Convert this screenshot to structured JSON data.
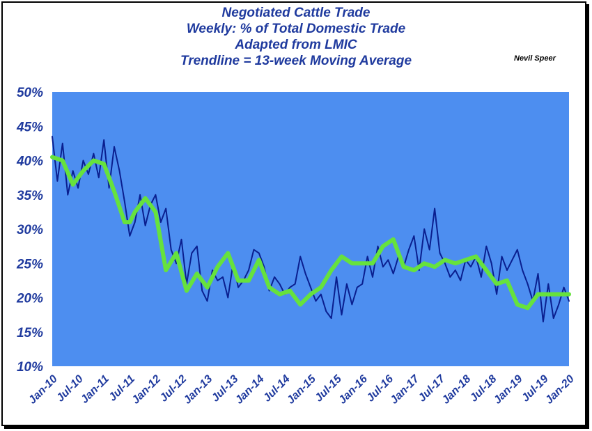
{
  "chart_data": {
    "type": "line",
    "title": [
      "Negotiated Cattle Trade",
      "Weekly:  % of Total Domestic Trade",
      "Adapted from LMIC",
      "Trendline = 13-week Moving Average"
    ],
    "author": "Nevil Speer",
    "xlabel": "",
    "ylabel": "",
    "ylim": [
      10,
      50
    ],
    "y_ticks": [
      "10%",
      "15%",
      "20%",
      "25%",
      "30%",
      "35%",
      "40%",
      "45%",
      "50%"
    ],
    "x_ticks": [
      "Jan-10",
      "Jul-10",
      "Jan-11",
      "Jul-11",
      "Jan-12",
      "Jul-12",
      "Jan-13",
      "Jul-13",
      "Jan-14",
      "Jul-14",
      "Jan-15",
      "Jul-15",
      "Jan-16",
      "Jul-16",
      "Jan-17",
      "Jul-17",
      "Jan-18",
      "Jul-18",
      "Jan-19",
      "Jul-19",
      "Jan-20"
    ],
    "x_range_years": [
      2010.0,
      2020.0
    ],
    "grid": false,
    "plot_background": "#4d8ef0",
    "series": [
      {
        "style": "weekly",
        "color": "#0a1f8f",
        "x": [
          2010.0,
          2010.1,
          2010.2,
          2010.3,
          2010.4,
          2010.5,
          2010.6,
          2010.7,
          2010.8,
          2010.9,
          2011.0,
          2011.1,
          2011.2,
          2011.3,
          2011.4,
          2011.5,
          2011.6,
          2011.7,
          2011.8,
          2011.9,
          2012.0,
          2012.1,
          2012.2,
          2012.3,
          2012.4,
          2012.5,
          2012.6,
          2012.7,
          2012.8,
          2012.9,
          2013.0,
          2013.1,
          2013.2,
          2013.3,
          2013.4,
          2013.5,
          2013.6,
          2013.7,
          2013.8,
          2013.9,
          2014.0,
          2014.1,
          2014.2,
          2014.3,
          2014.4,
          2014.5,
          2014.6,
          2014.7,
          2014.8,
          2014.9,
          2015.0,
          2015.1,
          2015.2,
          2015.3,
          2015.4,
          2015.5,
          2015.6,
          2015.7,
          2015.8,
          2015.9,
          2016.0,
          2016.1,
          2016.2,
          2016.3,
          2016.4,
          2016.5,
          2016.6,
          2016.7,
          2016.8,
          2016.9,
          2017.0,
          2017.1,
          2017.2,
          2017.3,
          2017.4,
          2017.5,
          2017.6,
          2017.7,
          2017.8,
          2017.9,
          2018.0,
          2018.1,
          2018.2,
          2018.3,
          2018.4,
          2018.5,
          2018.6,
          2018.7,
          2018.8,
          2018.9,
          2019.0,
          2019.1,
          2019.2,
          2019.3,
          2019.4,
          2019.5,
          2019.6,
          2019.7,
          2019.8,
          2019.9,
          2020.0
        ],
        "values": [
          43.5,
          37,
          42.5,
          35,
          38.5,
          36,
          40,
          38,
          41,
          37.5,
          43,
          36,
          42,
          38.5,
          34,
          29,
          31,
          35,
          30.5,
          33.5,
          35,
          31,
          33,
          27,
          25,
          28.5,
          22,
          26.5,
          27.5,
          21,
          19.5,
          24,
          22.5,
          23,
          20,
          25,
          21.5,
          22.5,
          24,
          27,
          26.5,
          24.5,
          21,
          23,
          22,
          20.5,
          21.5,
          22,
          26,
          23.5,
          21.5,
          19.5,
          20.5,
          18,
          17,
          23,
          17.5,
          22,
          19,
          21.5,
          22,
          26,
          23,
          27.5,
          24.5,
          25.5,
          23.5,
          26,
          24.5,
          27,
          29,
          24,
          30,
          27,
          33,
          26.5,
          25,
          23,
          24,
          22.5,
          25.5,
          24.5,
          26,
          23,
          27.5,
          25,
          20.5,
          26,
          24,
          25.5,
          27,
          24,
          22,
          19.5,
          23.5,
          16.5,
          22,
          17,
          19,
          21.5,
          19.5
        ]
      },
      {
        "name": "13-week Moving Average",
        "style": "trend",
        "color": "#66e23d",
        "x": [
          2010.0,
          2010.2,
          2010.4,
          2010.6,
          2010.8,
          2011.0,
          2011.2,
          2011.4,
          2011.5,
          2011.6,
          2011.8,
          2012.0,
          2012.2,
          2012.4,
          2012.6,
          2012.8,
          2013.0,
          2013.2,
          2013.4,
          2013.6,
          2013.8,
          2014.0,
          2014.2,
          2014.4,
          2014.6,
          2014.8,
          2015.0,
          2015.2,
          2015.4,
          2015.6,
          2015.8,
          2016.0,
          2016.2,
          2016.4,
          2016.6,
          2016.8,
          2017.0,
          2017.2,
          2017.4,
          2017.6,
          2017.8,
          2018.0,
          2018.2,
          2018.4,
          2018.6,
          2018.8,
          2019.0,
          2019.2,
          2019.4,
          2019.6,
          2019.8,
          2020.0
        ],
        "values": [
          40.5,
          40,
          36.5,
          38.5,
          40,
          39.5,
          35.5,
          31,
          31,
          32.5,
          34.5,
          32.5,
          24,
          26.5,
          21,
          23.5,
          21.5,
          24.5,
          26.5,
          22.5,
          22.5,
          25.5,
          21.5,
          20.5,
          21,
          19,
          20.5,
          21.5,
          24,
          26,
          25,
          25,
          25,
          27.5,
          28.5,
          24.5,
          24,
          25,
          24.5,
          25.5,
          25,
          25.5,
          26,
          24,
          22,
          22.5,
          19,
          18.5,
          20.5,
          20.5,
          20.5,
          20.5
        ]
      }
    ]
  }
}
